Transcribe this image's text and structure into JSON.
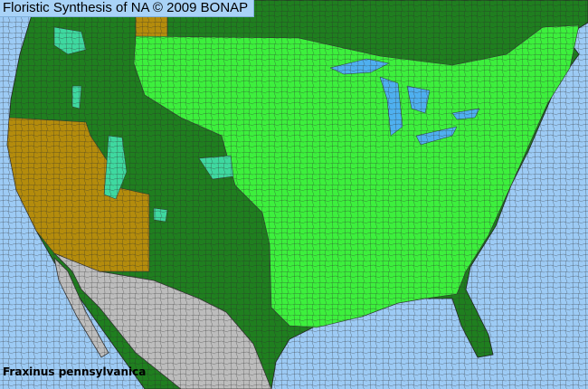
{
  "header": {
    "title": "Floristic Synthesis of NA © 2009 BONAP"
  },
  "map": {
    "species": "Fraxinus pennsylvanica",
    "colors": {
      "ocean": "#9dcbf5",
      "lakes": "#4fb0f0",
      "present_dark_green": "#1f7f1f",
      "present_bright_green": "#3df03d",
      "teal": "#3fd9a0",
      "absent_gold": "#b48c0c",
      "mexico_gray": "#bdbdbd",
      "borders": "#333333"
    }
  }
}
